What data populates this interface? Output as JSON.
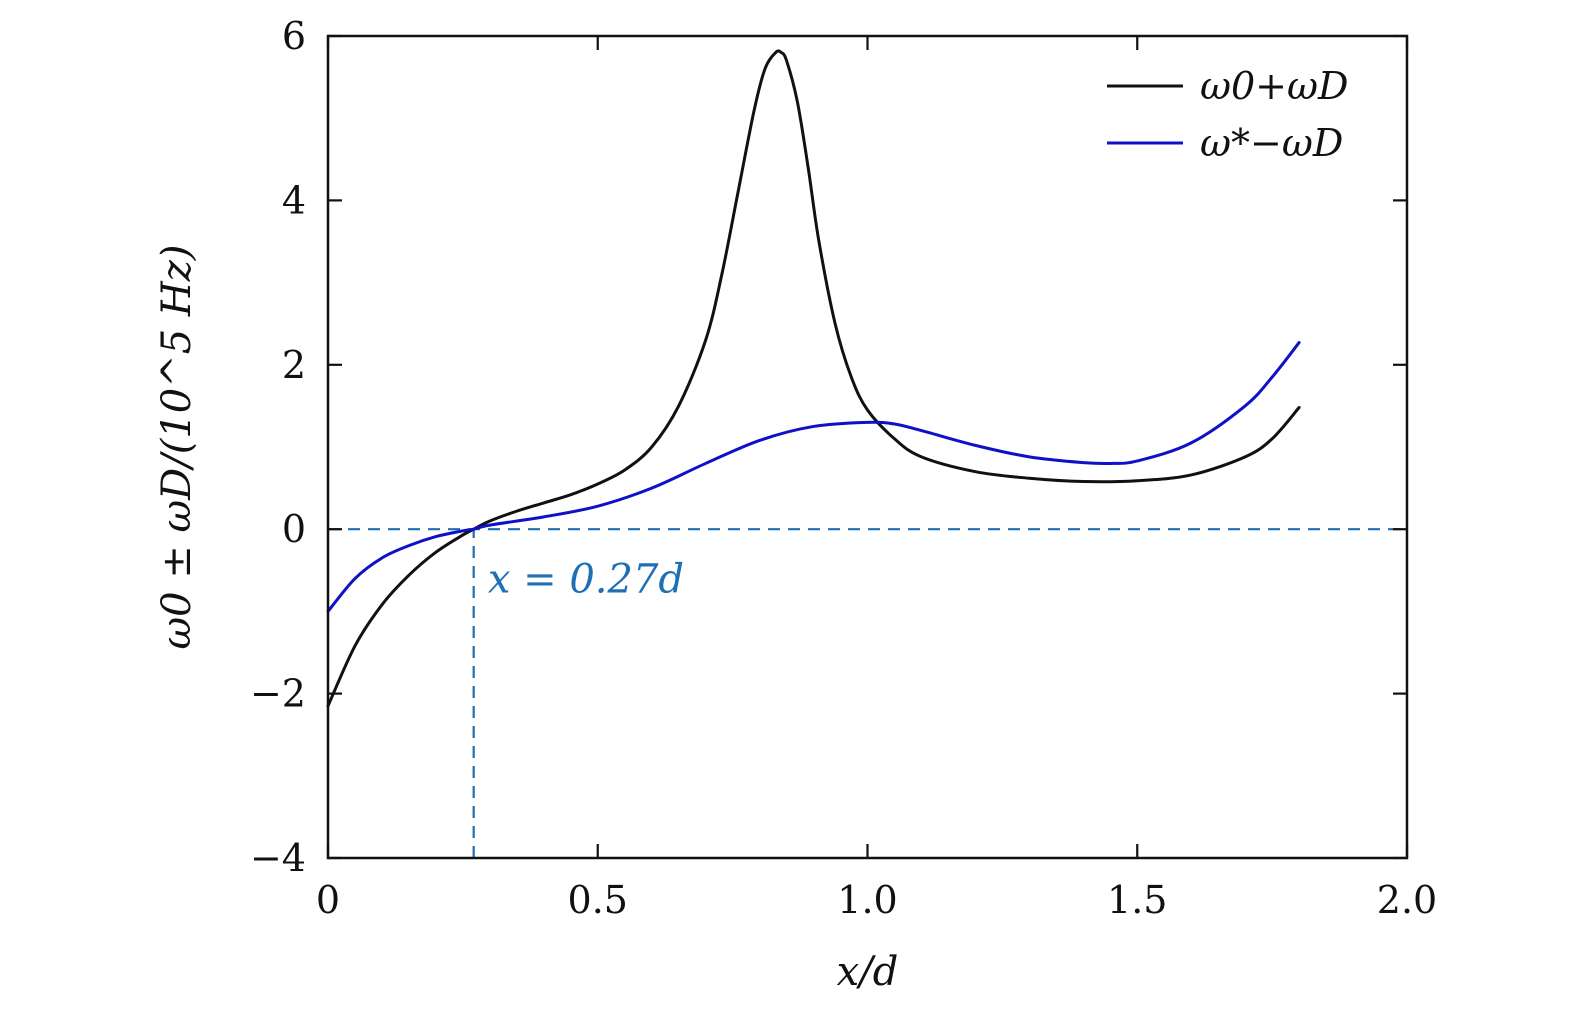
{
  "chart_data": {
    "type": "line",
    "title": "",
    "xlabel": "x/d",
    "ylabel": "ω0 ± ωD/(10^5 Hz)",
    "xlim": [
      0,
      2.0
    ],
    "ylim": [
      -4,
      6
    ],
    "xticks": [
      {
        "value": 0,
        "label": "0"
      },
      {
        "value": 0.5,
        "label": "0.5"
      },
      {
        "value": 1.0,
        "label": "1.0"
      },
      {
        "value": 1.5,
        "label": "1.5"
      },
      {
        "value": 2.0,
        "label": "2.0"
      }
    ],
    "yticks": [
      {
        "value": -4,
        "label": "−4"
      },
      {
        "value": -2,
        "label": "−2"
      },
      {
        "value": 0,
        "label": "0"
      },
      {
        "value": 2,
        "label": "2"
      },
      {
        "value": 4,
        "label": "4"
      },
      {
        "value": 6,
        "label": "6"
      }
    ],
    "grid": false,
    "legend_position": "top-right",
    "series": [
      {
        "name": "ω0+ωD",
        "color": "#111111",
        "x": [
          0,
          0.05,
          0.1,
          0.15,
          0.2,
          0.25,
          0.27,
          0.3,
          0.35,
          0.4,
          0.45,
          0.5,
          0.55,
          0.6,
          0.65,
          0.7,
          0.73,
          0.76,
          0.79,
          0.81,
          0.83,
          0.84,
          0.85,
          0.87,
          0.89,
          0.91,
          0.94,
          0.97,
          1.0,
          1.05,
          1.1,
          1.2,
          1.3,
          1.4,
          1.5,
          1.6,
          1.7,
          1.75,
          1.8
        ],
        "values": [
          -2.15,
          -1.42,
          -0.92,
          -0.56,
          -0.28,
          -0.07,
          0.0,
          0.1,
          0.22,
          0.32,
          0.42,
          0.55,
          0.72,
          1.0,
          1.5,
          2.3,
          3.1,
          4.1,
          5.1,
          5.6,
          5.8,
          5.8,
          5.7,
          5.2,
          4.4,
          3.5,
          2.5,
          1.85,
          1.45,
          1.1,
          0.88,
          0.7,
          0.62,
          0.58,
          0.59,
          0.66,
          0.88,
          1.1,
          1.48
        ]
      },
      {
        "name": "ω*−ωD",
        "color": "#1010c8",
        "x": [
          0,
          0.05,
          0.1,
          0.15,
          0.2,
          0.25,
          0.27,
          0.3,
          0.4,
          0.5,
          0.6,
          0.7,
          0.8,
          0.9,
          1.0,
          1.05,
          1.1,
          1.2,
          1.3,
          1.4,
          1.45,
          1.5,
          1.6,
          1.7,
          1.75,
          1.8
        ],
        "values": [
          -1.0,
          -0.6,
          -0.35,
          -0.2,
          -0.09,
          -0.02,
          0.0,
          0.05,
          0.15,
          0.28,
          0.5,
          0.8,
          1.08,
          1.25,
          1.3,
          1.28,
          1.2,
          1.02,
          0.88,
          0.81,
          0.8,
          0.83,
          1.05,
          1.5,
          1.85,
          2.27
        ]
      }
    ],
    "reference_lines": [
      {
        "type": "horizontal",
        "y": 0,
        "style": "dashed",
        "color": "#1f6fb4"
      },
      {
        "type": "vertical",
        "x": 0.27,
        "y_from": -4,
        "y_to": 0,
        "style": "dashed",
        "color": "#1f6fb4"
      }
    ],
    "annotations": [
      {
        "text": "x = 0.27d",
        "x": 0.3,
        "y": -0.6,
        "color": "#1f6fb4"
      }
    ]
  }
}
